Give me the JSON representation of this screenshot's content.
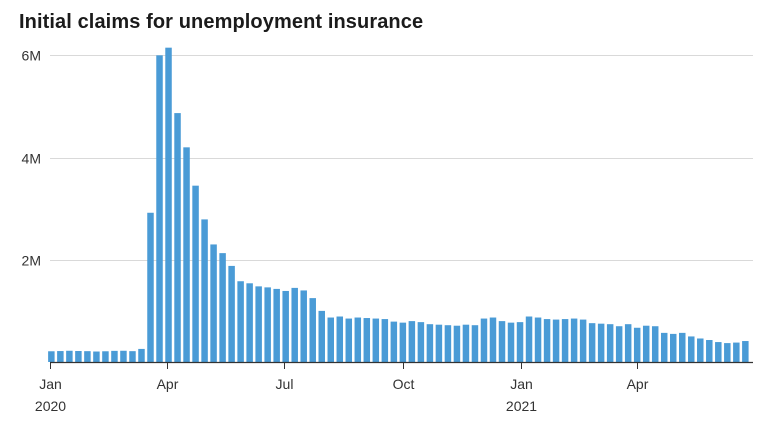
{
  "chart_data": {
    "type": "bar",
    "title": "Initial claims for unemployment insurance",
    "xlabel": "",
    "ylabel": "",
    "ylim": [
      0,
      6300000
    ],
    "grid": true,
    "bar_color": "#4a9bd6",
    "y_ticks": [
      {
        "value": 2000000,
        "label": "2M"
      },
      {
        "value": 4000000,
        "label": "4M"
      },
      {
        "value": 6000000,
        "label": "6M"
      }
    ],
    "x_ticks": [
      {
        "date": "2020-01-01",
        "label": "Jan",
        "sublabel": "2020"
      },
      {
        "date": "2020-04-01",
        "label": "Apr",
        "sublabel": ""
      },
      {
        "date": "2020-07-01",
        "label": "Jul",
        "sublabel": ""
      },
      {
        "date": "2020-10-01",
        "label": "Oct",
        "sublabel": ""
      },
      {
        "date": "2021-01-01",
        "label": "Jan",
        "sublabel": "2021"
      },
      {
        "date": "2021-04-01",
        "label": "Apr",
        "sublabel": ""
      }
    ],
    "x_start": "2020-01-01",
    "x_end": "2021-06-30",
    "week_dates": [
      "2020-01-04",
      "2020-01-11",
      "2020-01-18",
      "2020-01-25",
      "2020-02-01",
      "2020-02-08",
      "2020-02-15",
      "2020-02-22",
      "2020-02-29",
      "2020-03-07",
      "2020-03-14",
      "2020-03-21",
      "2020-03-28",
      "2020-04-04",
      "2020-04-11",
      "2020-04-18",
      "2020-04-25",
      "2020-05-02",
      "2020-05-09",
      "2020-05-16",
      "2020-05-23",
      "2020-05-30",
      "2020-06-06",
      "2020-06-13",
      "2020-06-20",
      "2020-06-27",
      "2020-07-04",
      "2020-07-11",
      "2020-07-18",
      "2020-07-25",
      "2020-08-01",
      "2020-08-08",
      "2020-08-15",
      "2020-08-22",
      "2020-08-29",
      "2020-09-05",
      "2020-09-12",
      "2020-09-19",
      "2020-09-26",
      "2020-10-03",
      "2020-10-10",
      "2020-10-17",
      "2020-10-24",
      "2020-10-31",
      "2020-11-07",
      "2020-11-14",
      "2020-11-21",
      "2020-11-28",
      "2020-12-05",
      "2020-12-12",
      "2020-12-19",
      "2020-12-26",
      "2021-01-02",
      "2021-01-09",
      "2021-01-16",
      "2021-01-23",
      "2021-01-30",
      "2021-02-06",
      "2021-02-13",
      "2021-02-20",
      "2021-02-27",
      "2021-03-06",
      "2021-03-13",
      "2021-03-20",
      "2021-03-27",
      "2021-04-03",
      "2021-04-10",
      "2021-04-17",
      "2021-04-24",
      "2021-05-01",
      "2021-05-08",
      "2021-05-15",
      "2021-05-22",
      "2021-05-29",
      "2021-06-05",
      "2021-06-12",
      "2021-06-19",
      "2021-06-26"
    ],
    "values": [
      210000,
      214000,
      220000,
      215000,
      212000,
      205000,
      210000,
      218000,
      220000,
      212000,
      256000,
      2920000,
      6000000,
      6150000,
      4870000,
      4200000,
      3450000,
      2790000,
      2300000,
      2130000,
      1880000,
      1580000,
      1540000,
      1480000,
      1460000,
      1430000,
      1390000,
      1450000,
      1400000,
      1250000,
      1000000,
      870000,
      890000,
      850000,
      870000,
      860000,
      850000,
      840000,
      790000,
      770000,
      800000,
      780000,
      740000,
      730000,
      720000,
      710000,
      730000,
      720000,
      850000,
      870000,
      800000,
      770000,
      780000,
      890000,
      870000,
      840000,
      830000,
      840000,
      850000,
      830000,
      760000,
      750000,
      740000,
      700000,
      740000,
      670000,
      710000,
      700000,
      570000,
      550000,
      570000,
      500000,
      460000,
      430000,
      390000,
      370000,
      380000,
      410000
    ]
  }
}
